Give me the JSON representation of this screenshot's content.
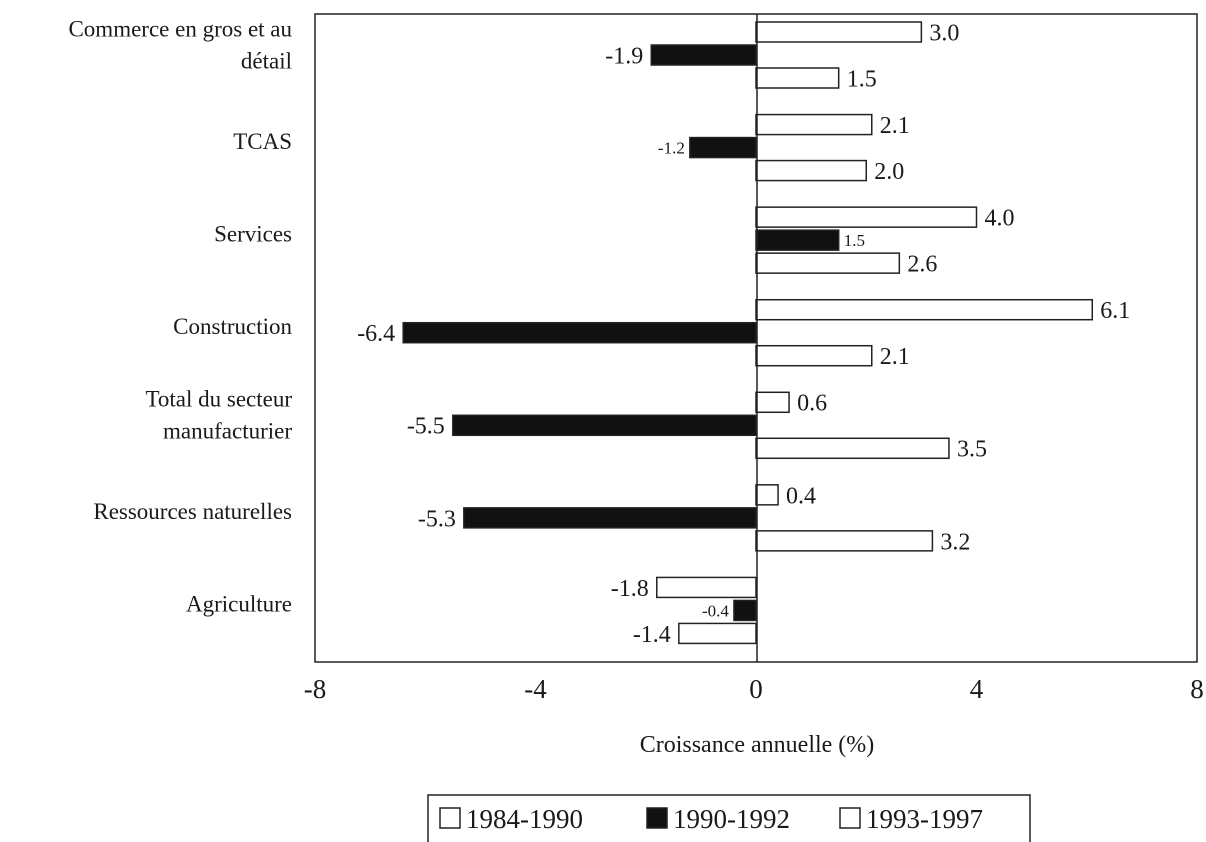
{
  "chart_data": {
    "type": "bar",
    "orientation": "horizontal",
    "title": "",
    "xlabel": "Croissance annuelle (%)",
    "ylabel": "",
    "xlim": [
      -8,
      8
    ],
    "xticks": [
      "-8",
      "-4",
      "0",
      "4",
      "8"
    ],
    "grid": false,
    "legend_position": "bottom",
    "categories": [
      [
        "Commerce en gros et au",
        "détail"
      ],
      [
        "TCAS"
      ],
      [
        "Services"
      ],
      [
        "Construction"
      ],
      [
        "Total du secteur",
        "manufacturier"
      ],
      [
        "Ressources naturelles"
      ],
      [
        "Agriculture"
      ]
    ],
    "series": [
      {
        "name": "1984-1990",
        "color": "#ffffff",
        "values": [
          3.0,
          2.1,
          4.0,
          6.1,
          0.6,
          0.4,
          -1.8
        ],
        "labels": [
          "3.0",
          "2.1",
          "4.0",
          "6.1",
          "0.6",
          "0.4",
          "-1.8"
        ]
      },
      {
        "name": "1990-1992",
        "color": "#111111",
        "values": [
          -1.9,
          -1.2,
          1.5,
          -6.4,
          -5.5,
          -5.3,
          -0.4
        ],
        "labels": [
          "-1.9",
          "-1.2",
          "1.5",
          "-6.4",
          "-5.5",
          "-5.3",
          "-0.4"
        ]
      },
      {
        "name": "1993-1997",
        "color": "#ffffff",
        "values": [
          1.5,
          2.0,
          2.6,
          2.1,
          3.5,
          3.2,
          -1.4
        ],
        "labels": [
          "1.5",
          "2.0",
          "2.6",
          "2.1",
          "3.5",
          "3.2",
          "-1.4"
        ]
      }
    ]
  }
}
